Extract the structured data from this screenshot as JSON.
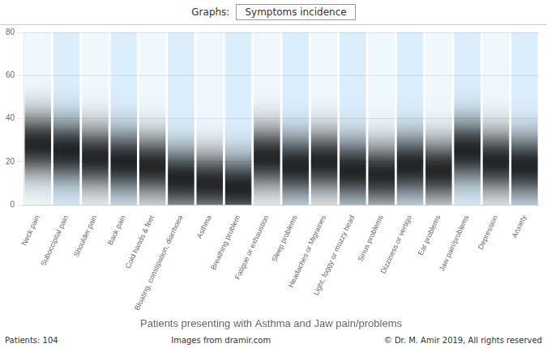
{
  "chart_data": {
    "type": "bar",
    "title": "Patients presenting with Asthma and Jaw pain/problems",
    "categories": [
      "Neck pain",
      "Suboccipital pain",
      "Shoulder pain",
      "Back pain",
      "Cold hands & feet",
      "Bloating, constipation, diarrhoea",
      "Asthma",
      "Breathing problem",
      "Fatigue or exhaustion",
      "Sleep problems",
      "Headaches or Migraines",
      "Light, foggy or muzzy head",
      "Sinus problems",
      "Dizziness or vertigo",
      "Ear problems",
      "Jaw pain/problems",
      "Depression",
      "Anxiety"
    ],
    "values": [
      28,
      25,
      22,
      20,
      18,
      12,
      10,
      8,
      22,
      18,
      20,
      16,
      14,
      18,
      16,
      25,
      20,
      18
    ],
    "spread": [
      10,
      10,
      10,
      10,
      10,
      10,
      10,
      10,
      10,
      10,
      10,
      10,
      10,
      10,
      10,
      10,
      10,
      10
    ],
    "ylim": [
      0,
      80
    ],
    "yticks": [
      0,
      20,
      40,
      60,
      80
    ],
    "grid": true,
    "annotations": [
      "Graphs:",
      "Symptoms incidence",
      "Patients: 104",
      "Images from dramir.com",
      "© Dr. M. Amir 2019, All rights reserved"
    ]
  }
}
